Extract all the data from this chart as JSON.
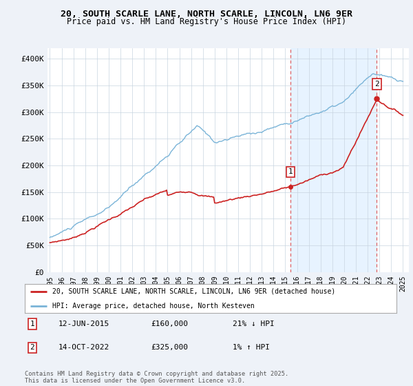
{
  "title_line1": "20, SOUTH SCARLE LANE, NORTH SCARLE, LINCOLN, LN6 9ER",
  "title_line2": "Price paid vs. HM Land Registry's House Price Index (HPI)",
  "hpi_color": "#7ab4d8",
  "price_color": "#cc2222",
  "shade_color": "#ddeeff",
  "vline_color": "#dd4444",
  "sale1_x": 2015.44,
  "sale1_y": 160000,
  "sale1_label": "1",
  "sale2_x": 2022.78,
  "sale2_y": 325000,
  "sale2_label": "2",
  "legend_house": "20, SOUTH SCARLE LANE, NORTH SCARLE, LINCOLN, LN6 9ER (detached house)",
  "legend_hpi": "HPI: Average price, detached house, North Kesteven",
  "note1_label": "1",
  "note1_date": "12-JUN-2015",
  "note1_price": "£160,000",
  "note1_change": "21% ↓ HPI",
  "note2_label": "2",
  "note2_date": "14-OCT-2022",
  "note2_price": "£325,000",
  "note2_change": "1% ↑ HPI",
  "copyright": "Contains HM Land Registry data © Crown copyright and database right 2025.\nThis data is licensed under the Open Government Licence v3.0.",
  "background_color": "#eef2f8",
  "plot_bg_color": "#ffffff",
  "ylim": [
    0,
    420000
  ],
  "yticks": [
    0,
    50000,
    100000,
    150000,
    200000,
    250000,
    300000,
    350000,
    400000
  ],
  "ytick_labels": [
    "£0",
    "£50K",
    "£100K",
    "£150K",
    "£200K",
    "£250K",
    "£300K",
    "£350K",
    "£400K"
  ],
  "xlim_start": 1994.8,
  "xlim_end": 2025.5,
  "xticks": [
    1995,
    1996,
    1997,
    1998,
    1999,
    2000,
    2001,
    2002,
    2003,
    2004,
    2005,
    2006,
    2007,
    2008,
    2009,
    2010,
    2011,
    2012,
    2013,
    2014,
    2015,
    2016,
    2017,
    2018,
    2019,
    2020,
    2021,
    2022,
    2023,
    2024,
    2025
  ]
}
